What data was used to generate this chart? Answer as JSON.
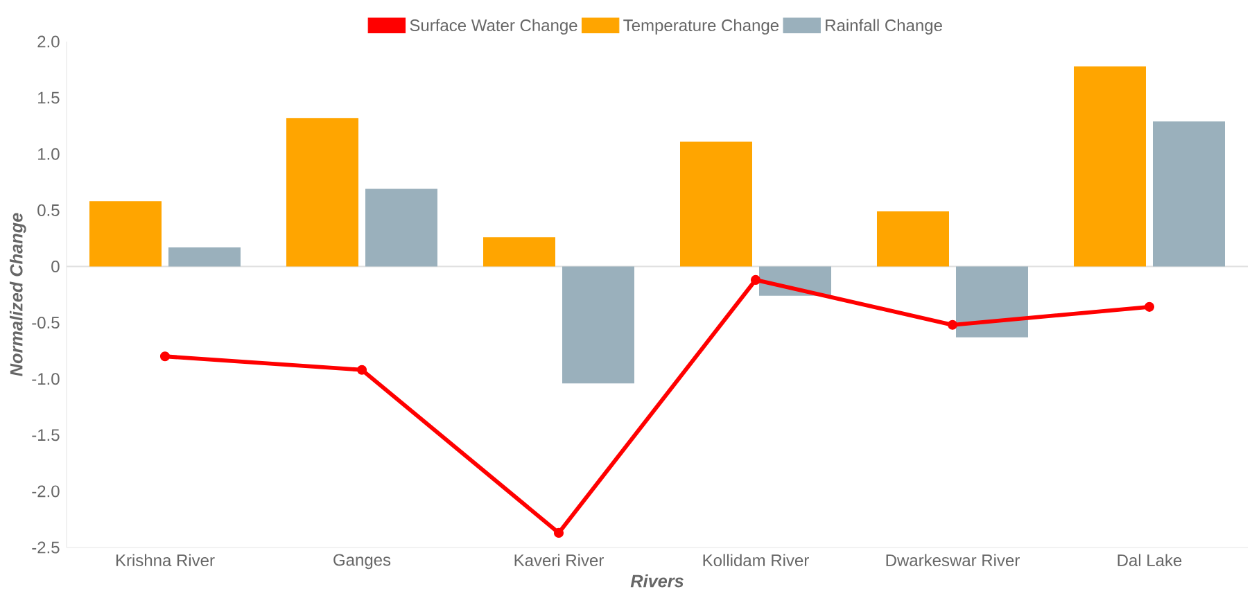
{
  "chart_data": {
    "type": "bar",
    "xlabel": "Rivers",
    "ylabel": "Normalized Change",
    "categories": [
      "Krishna River",
      "Ganges",
      "Kaveri River",
      "Kollidam River",
      "Dwarkeswar River",
      "Dal Lake"
    ],
    "series": [
      {
        "name": "Surface Water Change",
        "type": "line",
        "color": "#ff0000",
        "values": [
          -0.8,
          -0.92,
          -2.37,
          -0.12,
          -0.52,
          -0.36
        ]
      },
      {
        "name": "Temperature Change",
        "color": "#ffa500",
        "values": [
          0.58,
          1.32,
          0.26,
          1.11,
          0.49,
          1.78
        ]
      },
      {
        "name": "Rainfall Change",
        "color": "#9ab0bc",
        "values": [
          0.17,
          0.69,
          -1.04,
          -0.26,
          -0.63,
          1.29
        ]
      }
    ],
    "ylim": [
      -2.5,
      2.0
    ],
    "yticks": [
      {
        "value": -2.5,
        "label": "-2.5"
      },
      {
        "value": -2,
        "label": "-2.0"
      },
      {
        "value": -1.5,
        "label": "-1.5"
      },
      {
        "value": -1,
        "label": "-1.0"
      },
      -0.5,
      0,
      0.5,
      {
        "value": 1,
        "label": "1.0"
      },
      1.5,
      {
        "value": 2,
        "label": "2.0"
      }
    ],
    "ref_lines": [
      {
        "axis": "y",
        "value": 0,
        "color": "#e0e0e0"
      }
    ],
    "legend": "top",
    "marker": "circle"
  }
}
